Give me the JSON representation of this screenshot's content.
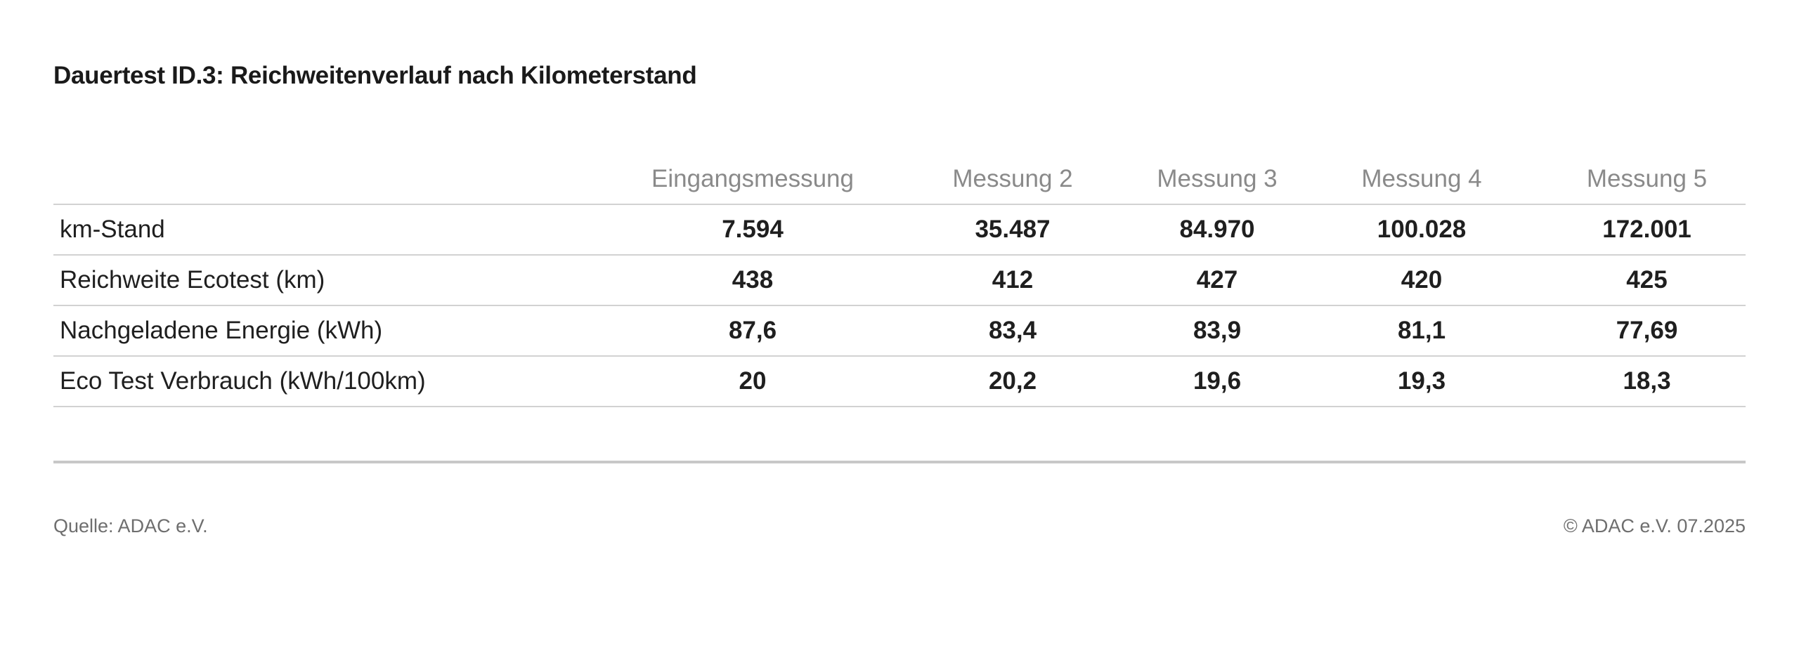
{
  "chart_data": {
    "type": "table",
    "title": "Dauertest ID.3: Reichweitenverlauf nach Kilometerstand",
    "columns": [
      "",
      "Eingangsmessung",
      "Messung 2",
      "Messung 3",
      "Messung 4",
      "Messung 5"
    ],
    "rows": [
      {
        "label": "km-Stand",
        "values": [
          "7.594",
          "35.487",
          "84.970",
          "100.028",
          "172.001"
        ]
      },
      {
        "label": "Reichweite Ecotest (km)",
        "values": [
          "438",
          "412",
          "427",
          "420",
          "425"
        ]
      },
      {
        "label": "Nachgeladene Energie (kWh)",
        "values": [
          "87,6",
          "83,4",
          "83,9",
          "81,1",
          "77,69"
        ]
      },
      {
        "label": "Eco Test Verbrauch (kWh/100km)",
        "values": [
          "20",
          "20,2",
          "19,6",
          "19,3",
          "18,3"
        ]
      }
    ]
  },
  "footer": {
    "source": "Quelle: ADAC e.V.",
    "copyright": "© ADAC e.V. 07.2025"
  }
}
